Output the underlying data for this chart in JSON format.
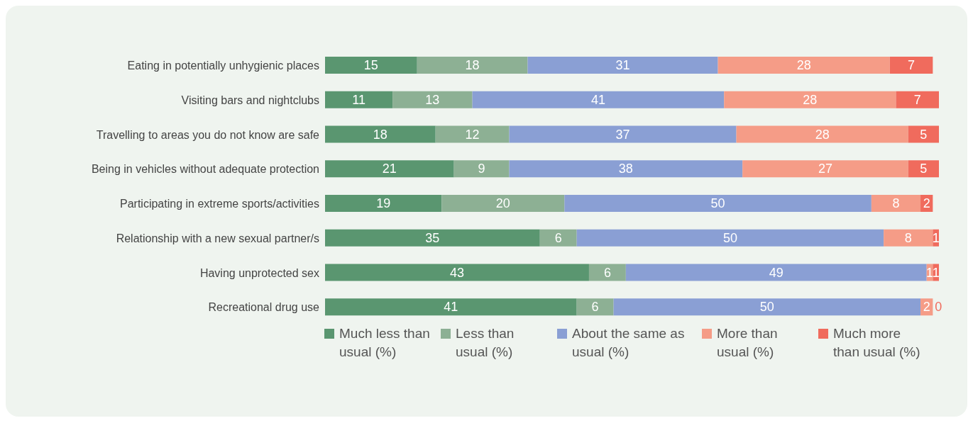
{
  "chart_data": {
    "type": "bar",
    "orientation": "horizontal",
    "stacked": true,
    "data_labels": true,
    "legend": "bottom",
    "grid": false,
    "categories": [
      "Eating in potentially unhygienic places",
      "Visiting bars and nightclubs",
      "Travelling to areas you do not know are safe",
      "Being in vehicles without adequate protection",
      "Participating in extreme sports/activities",
      "Relationship with a new sexual partner/s",
      "Having unprotected sex",
      "Recreational drug use"
    ],
    "series": [
      {
        "name": "Much less than usual (%)",
        "color": "#5a9670",
        "values": [
          15,
          11,
          18,
          21,
          19,
          35,
          43,
          41
        ]
      },
      {
        "name": "Less than usual (%)",
        "color": "#8db094",
        "values": [
          18,
          13,
          12,
          9,
          20,
          6,
          6,
          6
        ]
      },
      {
        "name": "About the same as usual (%)",
        "color": "#8a9fd4",
        "values": [
          31,
          41,
          37,
          38,
          50,
          50,
          49,
          50
        ]
      },
      {
        "name": "More than usual (%)",
        "color": "#f59c87",
        "values": [
          28,
          28,
          28,
          27,
          8,
          8,
          1,
          2
        ]
      },
      {
        "name": "Much more than usual (%)",
        "color": "#f06b5d",
        "values": [
          7,
          7,
          5,
          5,
          2,
          1,
          1,
          0
        ]
      }
    ]
  }
}
